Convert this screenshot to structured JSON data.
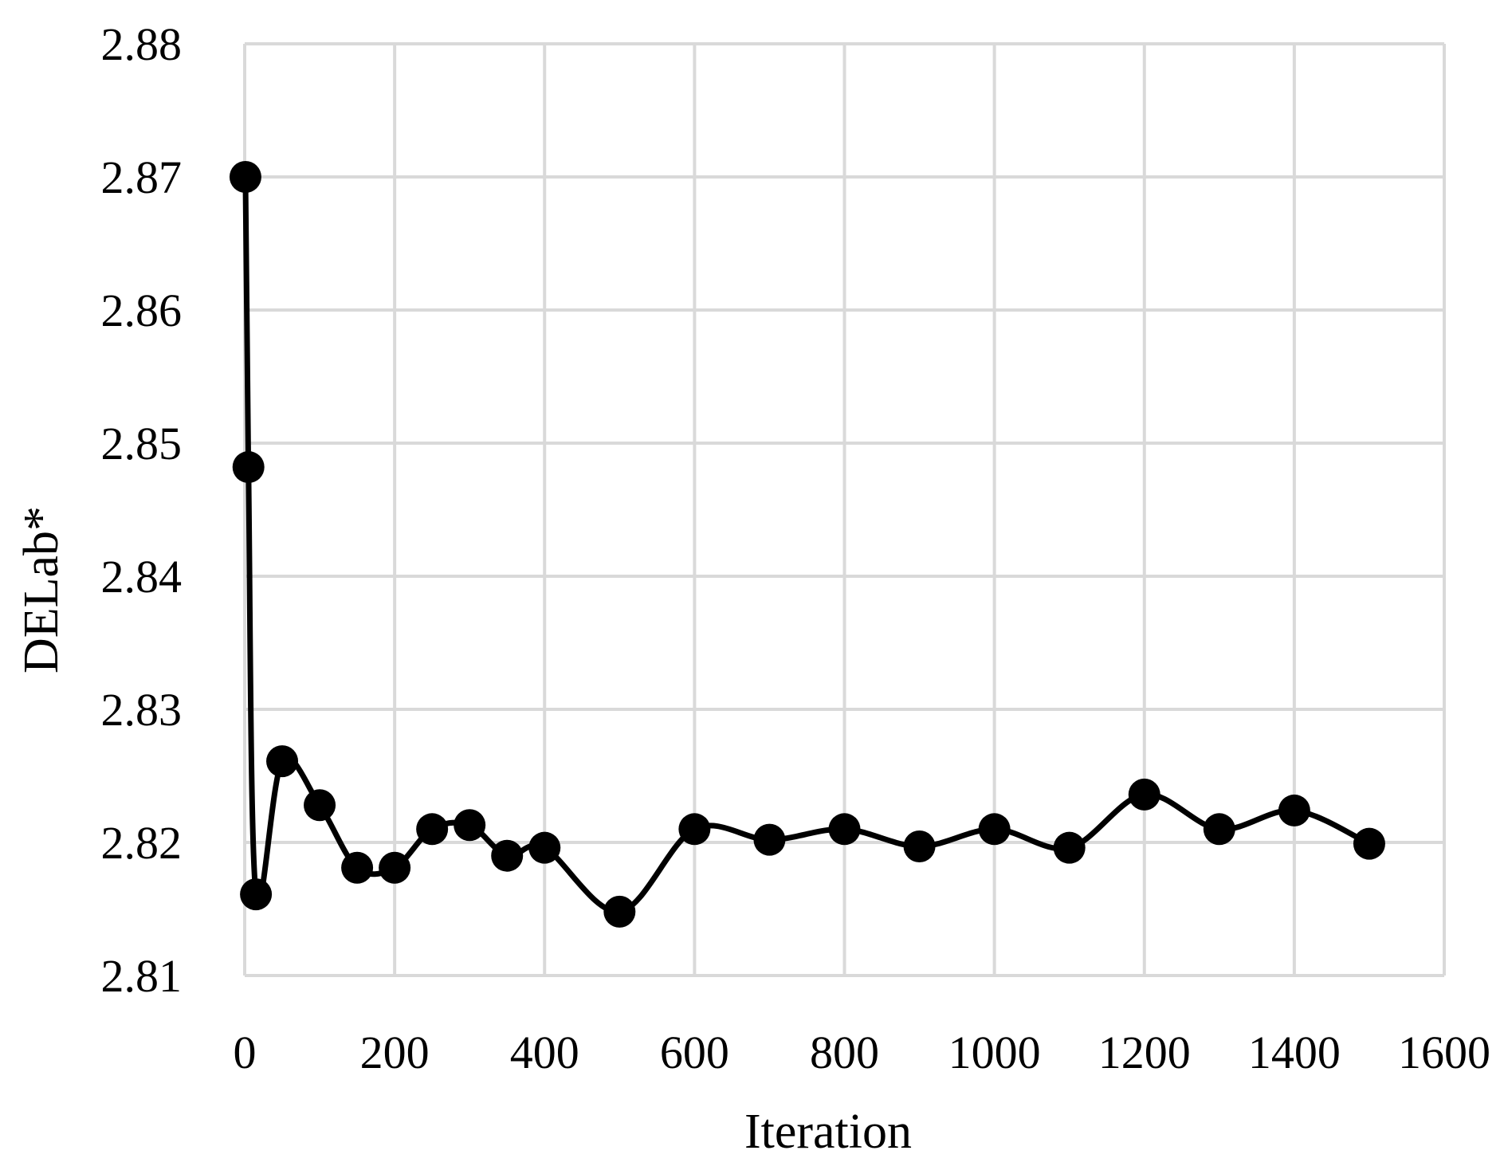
{
  "chart_data": {
    "type": "line",
    "smoothed": true,
    "markers": "filled-circle",
    "title": "",
    "xlabel": "Iteration",
    "ylabel": "DELab*",
    "xlim": [
      0,
      1600
    ],
    "ylim": [
      2.81,
      2.88
    ],
    "x_ticks": [
      0,
      200,
      400,
      600,
      800,
      1000,
      1200,
      1400,
      1600
    ],
    "y_ticks": [
      2.81,
      2.82,
      2.83,
      2.84,
      2.85,
      2.86,
      2.87,
      2.88
    ],
    "x_tick_labels": [
      "0",
      "200",
      "400",
      "600",
      "800",
      "1000",
      "1200",
      "1400",
      "1600"
    ],
    "y_tick_labels": [
      "2.81",
      "2.82",
      "2.83",
      "2.84",
      "2.85",
      "2.86",
      "2.87",
      "2.88"
    ],
    "grid": true,
    "legend": "none",
    "series": [
      {
        "x": [
          1,
          5,
          15,
          50,
          100,
          150,
          200,
          250,
          300,
          350,
          400,
          500,
          600,
          700,
          800,
          900,
          1000,
          1100,
          1200,
          1300,
          1400,
          1500
        ],
        "y": [
          2.87,
          2.8482,
          2.8161,
          2.8261,
          2.8228,
          2.8181,
          2.8181,
          2.821,
          2.8213,
          2.819,
          2.8196,
          2.8148,
          2.821,
          2.8202,
          2.821,
          2.8197,
          2.821,
          2.8196,
          2.8236,
          2.821,
          2.8224,
          2.8199
        ]
      }
    ]
  },
  "colors": {
    "grid": "#d9d9d9",
    "series": "#000000",
    "background": "#ffffff"
  }
}
